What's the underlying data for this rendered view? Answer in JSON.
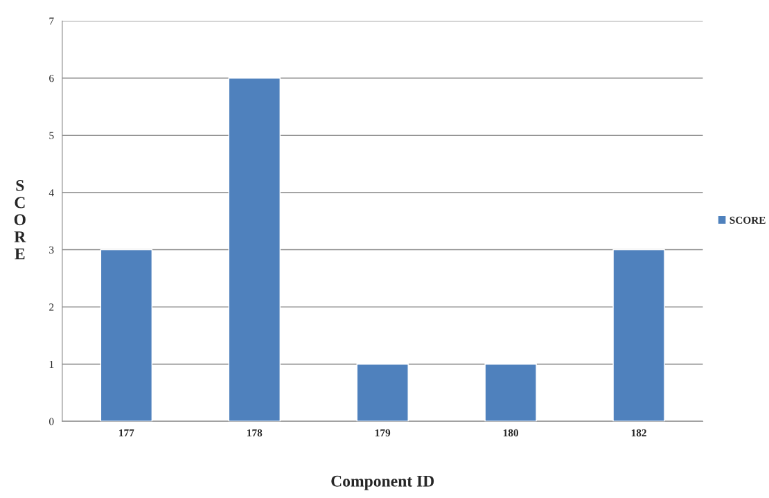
{
  "chart_data": {
    "type": "bar",
    "xlabel": "Component ID",
    "ylabel": "SCORE",
    "categories": [
      "177",
      "178",
      "179",
      "180",
      "182"
    ],
    "series": [
      {
        "name": "SCORE",
        "color": "#4f81bd",
        "values": [
          3,
          6,
          1,
          1,
          3
        ]
      }
    ],
    "ylim": [
      0,
      7
    ],
    "yticks": [
      0,
      1,
      2,
      3,
      4,
      5,
      6,
      7
    ],
    "grid": "y",
    "legend": "right"
  }
}
